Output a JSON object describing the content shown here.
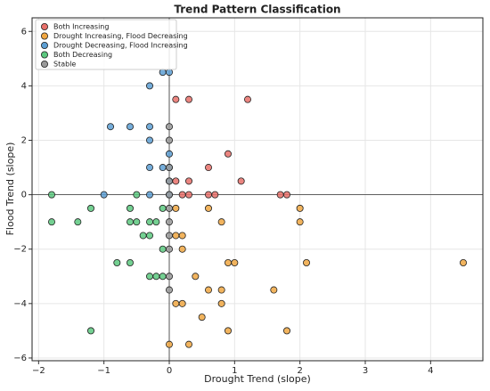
{
  "chart_data": {
    "type": "scatter",
    "title": "Trend Pattern Classification",
    "x_label": "Drought Trend (slope)",
    "y_label": "Flood Trend (slope)",
    "xlim": [
      -2.1,
      4.8
    ],
    "ylim": [
      -6.1,
      6.5
    ],
    "xticks": [
      {
        "value": -2,
        "label": "−2"
      },
      {
        "value": -1,
        "label": "−1"
      },
      0,
      1,
      2,
      3,
      4
    ],
    "yticks": [
      {
        "value": -6,
        "label": "−6"
      },
      {
        "value": -4,
        "label": "−4"
      },
      {
        "value": -2,
        "label": "−2"
      },
      0,
      2,
      4,
      6
    ],
    "grid": true,
    "legend": "upper-left",
    "hlines": [
      0
    ],
    "vlines": [
      0
    ],
    "series": [
      {
        "name": "Both Increasing",
        "color": "#e8706a",
        "x": [
          0.1,
          0.3,
          1.2,
          0.9,
          0.6,
          0.3,
          0.1,
          1.1,
          0.2,
          0.3,
          0.6,
          0.7,
          1.7,
          1.8
        ],
        "values": [
          3.5,
          3.5,
          3.5,
          1.5,
          1,
          0.5,
          0.5,
          0.5,
          0,
          0,
          0,
          0,
          0,
          0
        ]
      },
      {
        "name": "Drought Increasing, Flood Decreasing",
        "color": "#f0a742",
        "x": [
          0.1,
          0.6,
          2,
          0.8,
          2,
          0.1,
          0.2,
          0.2,
          0.9,
          1,
          2.1,
          4.5,
          0.4,
          0.6,
          0.8,
          1.6,
          0.1,
          0.2,
          0.8,
          0.5,
          0.9,
          1.8,
          0,
          0.3
        ],
        "values": [
          -0.5,
          -0.5,
          -0.5,
          -1,
          -1,
          -1.5,
          -1.5,
          -2,
          -2.5,
          -2.5,
          -2.5,
          -2.5,
          -3,
          -3.5,
          -3.5,
          -3.5,
          -4,
          -4,
          -4,
          -4.5,
          -5,
          -5,
          -5.5,
          -5.5
        ]
      },
      {
        "name": "Drought Decreasing, Flood Increasing",
        "color": "#5d9fd3",
        "x": [
          -0.1,
          0,
          -0.3,
          -0.9,
          -0.6,
          -0.3,
          -0.3,
          0,
          -0.3,
          -0.1,
          0,
          0,
          -1,
          -0.3,
          0
        ],
        "values": [
          4.5,
          4.5,
          4,
          2.5,
          2.5,
          2.5,
          2,
          1.5,
          1,
          1,
          1,
          0.5,
          0,
          0,
          0
        ]
      },
      {
        "name": "Both Decreasing",
        "color": "#5cc87f",
        "x": [
          -1.8,
          -0.5,
          -1.2,
          -0.6,
          -0.1,
          -1.8,
          -1.4,
          -0.6,
          -0.5,
          -0.3,
          -0.2,
          -0.4,
          -0.3,
          -0.1,
          -0.8,
          -0.6,
          -0.3,
          -0.2,
          -0.1,
          -1.2
        ],
        "values": [
          0,
          0,
          -0.5,
          -0.5,
          -0.5,
          -1,
          -1,
          -1,
          -1,
          -1,
          -1,
          -1.5,
          -1.5,
          -2,
          -2.5,
          -2.5,
          -3,
          -3,
          -3,
          -5
        ]
      },
      {
        "name": "Stable",
        "color": "#999999",
        "x": [
          0,
          0,
          0,
          0,
          0,
          0,
          0,
          0,
          0,
          0,
          0
        ],
        "values": [
          2.5,
          2,
          1,
          0.5,
          0,
          -0.5,
          -1,
          -1.5,
          -2,
          -3,
          -3.5
        ]
      }
    ]
  }
}
